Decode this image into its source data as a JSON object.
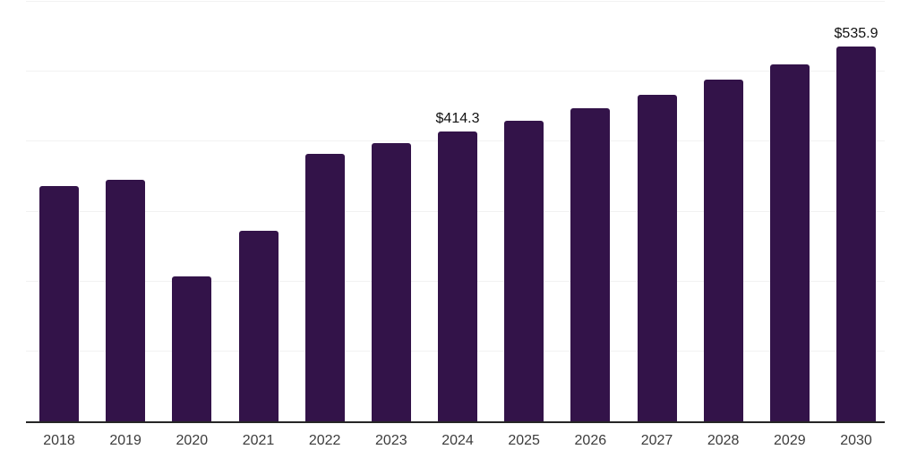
{
  "page": {
    "background_color": "#ffffff"
  },
  "chart_data": {
    "type": "bar",
    "title": "",
    "xlabel": "",
    "ylabel": "",
    "categories": [
      "2018",
      "2019",
      "2020",
      "2021",
      "2022",
      "2023",
      "2024",
      "2025",
      "2026",
      "2027",
      "2028",
      "2029",
      "2030"
    ],
    "values": [
      336,
      346,
      207,
      272,
      383,
      398,
      414.3,
      430,
      448,
      467,
      489,
      510,
      535.9
    ],
    "data_labels": [
      {
        "index": 6,
        "text": "$414.3"
      },
      {
        "index": 12,
        "text": "$535.9"
      }
    ],
    "ylim": [
      0,
      600
    ],
    "grid_step": 100,
    "grid": "horizontal-only",
    "y_axis_tick_labels_visible": false,
    "legend": "none",
    "bar_color": "#331349",
    "gridline_color": "#f2f2f2",
    "axis_line_color": "#262626",
    "tick_label_color": "#3c3c3c",
    "data_label_color": "#111111"
  }
}
